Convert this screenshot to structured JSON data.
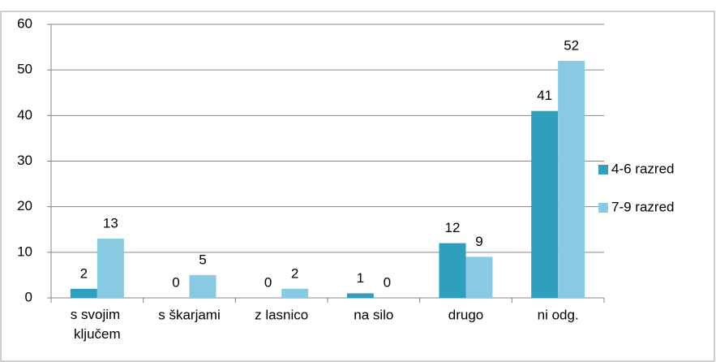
{
  "chart_data": {
    "type": "bar",
    "categories": [
      "s svojim ključem",
      "s škarjami",
      "z lasnico",
      "na silo",
      "drugo",
      "ni odg."
    ],
    "series": [
      {
        "name": "4-6 razred",
        "color": "#2f9fbd",
        "values": [
          2,
          0,
          0,
          1,
          12,
          41
        ]
      },
      {
        "name": "7-9 razred",
        "color": "#88cae1",
        "values": [
          13,
          5,
          2,
          0,
          9,
          52
        ]
      }
    ],
    "ylim": [
      0,
      60
    ],
    "yticks": [
      0,
      10,
      20,
      30,
      40,
      50,
      60
    ],
    "grid": true,
    "legend": "right"
  }
}
